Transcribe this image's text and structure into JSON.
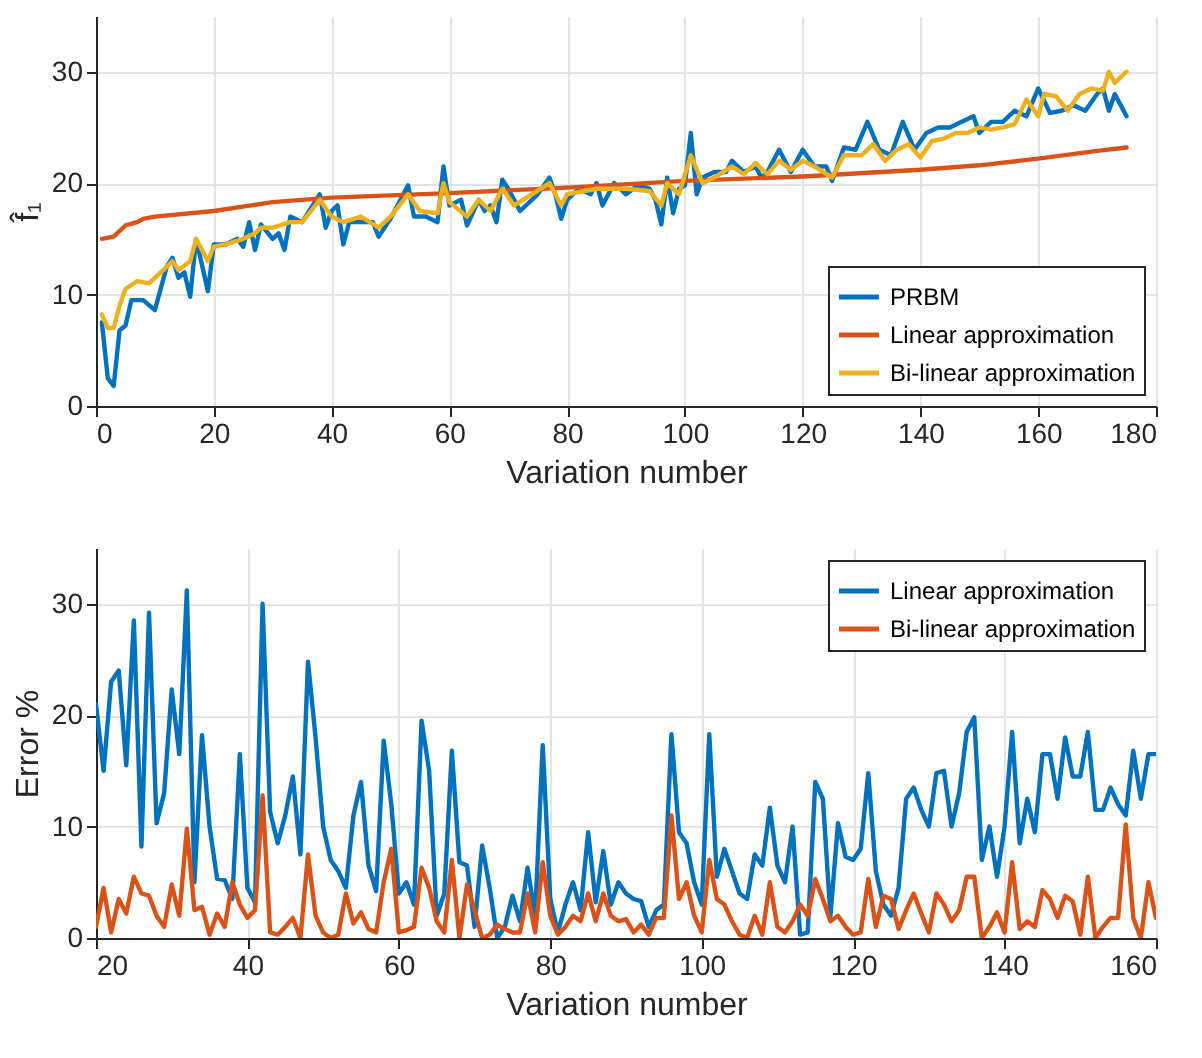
{
  "chart_data": [
    {
      "type": "line",
      "xlabel": "Variation number",
      "ylabel": "f̂₁",
      "xlim": [
        0,
        180
      ],
      "xticks": [
        0,
        20,
        40,
        60,
        80,
        100,
        120,
        140,
        160,
        180
      ],
      "ylim": [
        0,
        35
      ],
      "yticks": [
        0,
        10,
        20,
        30
      ],
      "grid": true,
      "legend": "bottom right",
      "series": [
        {
          "name": "PRBM",
          "color": "#0072bd",
          "x": [
            1,
            2,
            3,
            4,
            5,
            6,
            8,
            10,
            12,
            13,
            14,
            15,
            16,
            17,
            19,
            20,
            22,
            24,
            25,
            26,
            27,
            28,
            30,
            31,
            32,
            33,
            35,
            38,
            39,
            40,
            41,
            42,
            43,
            45,
            47,
            48,
            50,
            53,
            54,
            56,
            58,
            59,
            60,
            62,
            63,
            65,
            66,
            67,
            68,
            69,
            70,
            72,
            75,
            77,
            78,
            79,
            80,
            82,
            84,
            85,
            86,
            88,
            90,
            92,
            94,
            95,
            96,
            97,
            98,
            99,
            100,
            101,
            102,
            103,
            105,
            107,
            108,
            110,
            112,
            113,
            114,
            116,
            118,
            120,
            122,
            124,
            125,
            127,
            129,
            131,
            133,
            135,
            137,
            139,
            141,
            143,
            145,
            147,
            149,
            150,
            152,
            154,
            156,
            158,
            160,
            162,
            164,
            166,
            168,
            170,
            171,
            172,
            173,
            175
          ],
          "values": [
            7.5,
            2.5,
            1.8,
            6.8,
            7.2,
            9.5,
            9.5,
            8.6,
            12.5,
            13.3,
            11.5,
            12,
            9.8,
            15,
            10.3,
            14.5,
            14.5,
            15,
            14.3,
            16.5,
            14,
            16.3,
            15,
            15.5,
            14,
            17,
            16.5,
            19,
            16,
            17.5,
            18,
            14.5,
            16.5,
            16.5,
            16.5,
            15.2,
            16.8,
            19.8,
            17,
            17,
            16.5,
            21.5,
            18,
            18.5,
            16.2,
            18.5,
            17.5,
            18,
            16.5,
            20.3,
            19.5,
            17.5,
            19,
            20.5,
            19,
            16.8,
            18.5,
            19.5,
            19,
            20,
            18,
            20,
            19,
            19.8,
            19.5,
            18.5,
            16.3,
            20.5,
            17.3,
            19.5,
            19.8,
            24.5,
            19,
            20.5,
            21,
            21,
            22,
            21,
            21.5,
            20.5,
            21,
            23,
            21,
            23,
            21.5,
            21.5,
            20.2,
            23.2,
            23,
            25.5,
            23,
            22.5,
            25.5,
            23,
            24.5,
            25,
            25,
            25.5,
            26,
            24.5,
            25.5,
            25.5,
            26.5,
            26,
            28.5,
            26.3,
            26.5,
            27,
            26.5,
            28,
            28.5,
            26.5,
            28,
            26
          ]
        },
        {
          "name": "Linear approximation",
          "color": "#d95319",
          "x": [
            1,
            3,
            5,
            7,
            8,
            10,
            20,
            30,
            40,
            60,
            80,
            100,
            120,
            140,
            150,
            160,
            170,
            175
          ],
          "values": [
            15,
            15.2,
            16.2,
            16.5,
            16.8,
            17,
            17.5,
            18.3,
            18.7,
            19.1,
            19.6,
            20.2,
            20.6,
            21.2,
            21.6,
            22.2,
            22.9,
            23.2
          ]
        },
        {
          "name": "Bi-linear approximation",
          "color": "#edb120",
          "x": [
            1,
            2,
            3,
            4,
            5,
            7,
            9,
            11,
            13,
            14,
            16,
            17,
            19,
            20,
            22,
            25,
            27,
            28,
            30,
            33,
            35,
            38,
            40,
            42,
            45,
            48,
            50,
            53,
            55,
            58,
            59,
            60,
            63,
            65,
            67,
            69,
            71,
            74,
            77,
            79,
            80,
            85,
            90,
            94,
            96,
            97,
            99,
            101,
            103,
            105,
            108,
            110,
            112,
            114,
            116,
            118,
            120,
            122,
            125,
            127,
            130,
            132,
            134,
            136,
            138,
            140,
            142,
            144,
            146,
            148,
            150,
            152,
            154,
            156,
            158,
            160,
            161,
            163,
            165,
            167,
            169,
            171,
            172,
            173,
            175
          ],
          "values": [
            8.2,
            7,
            7,
            9,
            10.5,
            11.2,
            11,
            12,
            13,
            12.2,
            13,
            15,
            13,
            14.3,
            14.5,
            15,
            15.5,
            16,
            16,
            16.5,
            16.5,
            18.5,
            17,
            16.5,
            17,
            16,
            17,
            19,
            17.5,
            17.3,
            20,
            18.3,
            17,
            18.5,
            17.5,
            19.5,
            18,
            19,
            20,
            18,
            19,
            19.5,
            19.5,
            19.3,
            18,
            20,
            19,
            22.5,
            20,
            20.5,
            21.5,
            20.8,
            21.8,
            20.8,
            22,
            21.2,
            22,
            21.5,
            20.5,
            22.5,
            22.5,
            23.5,
            22,
            23,
            23.5,
            22.3,
            23.8,
            24,
            24.5,
            24.5,
            25,
            24.8,
            25,
            25.3,
            27.5,
            26,
            28,
            27.8,
            26.5,
            28,
            28.5,
            28.3,
            30,
            29,
            30
          ]
        }
      ]
    },
    {
      "type": "line",
      "xlabel": "Variation number",
      "ylabel": "Error %",
      "xlim": [
        20,
        160
      ],
      "xticks": [
        20,
        40,
        60,
        80,
        100,
        120,
        140,
        160
      ],
      "ylim": [
        0,
        35
      ],
      "yticks": [
        0,
        10,
        20,
        30
      ],
      "grid": true,
      "legend": "top right",
      "series": [
        {
          "name": "Linear approximation",
          "color": "#0072bd",
          "x": [
            20,
            21,
            22,
            23,
            24,
            25,
            26,
            27,
            28,
            29,
            30,
            31,
            32,
            33,
            34,
            35,
            36,
            37,
            38,
            39,
            40,
            41,
            42,
            43,
            44,
            45,
            46,
            47,
            48,
            49,
            50,
            51,
            52,
            53,
            54,
            55,
            56,
            57,
            58,
            59,
            60,
            61,
            62,
            63,
            64,
            65,
            66,
            67,
            68,
            69,
            70,
            71,
            72,
            73,
            74,
            75,
            76,
            77,
            78,
            79,
            80,
            81,
            82,
            83,
            84,
            85,
            86,
            87,
            88,
            89,
            90,
            91,
            92,
            93,
            94,
            95,
            96,
            97,
            98,
            99,
            100,
            101,
            102,
            103,
            104,
            105,
            106,
            107,
            108,
            109,
            110,
            111,
            112,
            113,
            114,
            115,
            116,
            117,
            118,
            119,
            120,
            121,
            122,
            123,
            124,
            125,
            126,
            127,
            128,
            129,
            130,
            131,
            132,
            133,
            134,
            135,
            136,
            137,
            138,
            139,
            140,
            141,
            142,
            143,
            144,
            145,
            146,
            147,
            148,
            149,
            150,
            151,
            152,
            153,
            154,
            155,
            156,
            157,
            158,
            159,
            160
          ],
          "values": [
            21,
            15,
            23,
            24,
            15.5,
            28.5,
            8.2,
            29.2,
            10.3,
            13,
            22.3,
            16.5,
            31.2,
            5,
            18.2,
            10,
            5.3,
            5.2,
            3.5,
            16.5,
            4.5,
            3.2,
            30,
            11.3,
            8.5,
            11,
            14.5,
            7.5,
            24.8,
            18,
            10,
            7,
            6,
            4.5,
            11,
            14,
            6.5,
            4.2,
            17.7,
            12,
            4,
            5,
            3,
            19.5,
            15,
            2,
            4,
            16.8,
            6.8,
            6.5,
            1,
            8.3,
            4.5,
            0,
            1,
            3.8,
            1.5,
            6.3,
            2,
            17.3,
            3.5,
            0.5,
            3,
            5,
            2.5,
            9.5,
            3.2,
            7.8,
            3,
            5,
            4,
            3.5,
            3.3,
            1,
            2.5,
            3,
            18.3,
            9.5,
            8.5,
            5,
            3,
            18.3,
            5.5,
            8,
            6,
            4,
            3.5,
            7.5,
            6.5,
            11.7,
            6.5,
            5,
            10,
            0.3,
            0.5,
            14,
            12.5,
            2,
            10.3,
            7.3,
            7,
            8,
            14.8,
            6,
            3,
            2,
            4.5,
            12.5,
            13.5,
            11.5,
            10,
            14.8,
            15,
            10,
            13,
            18.5,
            19.8,
            7,
            10,
            5.5,
            10,
            18.5,
            8.5,
            12.5,
            9.5,
            16.5,
            16.5,
            12.5,
            18,
            14.5,
            14.5,
            18.5,
            11.5,
            11.5,
            13.5,
            12,
            11,
            16.8,
            12.5,
            16.5,
            16.5
          ]
        },
        {
          "name": "Bi-linear approximation",
          "color": "#d95319",
          "x": [
            20,
            21,
            22,
            23,
            24,
            25,
            26,
            27,
            28,
            29,
            30,
            31,
            32,
            33,
            34,
            35,
            36,
            37,
            38,
            39,
            40,
            41,
            42,
            43,
            44,
            45,
            46,
            47,
            48,
            49,
            50,
            51,
            52,
            53,
            54,
            55,
            56,
            57,
            58,
            59,
            60,
            61,
            62,
            63,
            64,
            65,
            66,
            67,
            68,
            69,
            70,
            71,
            72,
            73,
            74,
            75,
            76,
            77,
            78,
            79,
            80,
            81,
            82,
            83,
            84,
            85,
            86,
            87,
            88,
            89,
            90,
            91,
            92,
            93,
            94,
            95,
            96,
            97,
            98,
            99,
            100,
            101,
            102,
            103,
            104,
            105,
            106,
            107,
            108,
            109,
            110,
            111,
            112,
            113,
            114,
            115,
            116,
            117,
            118,
            119,
            120,
            121,
            122,
            123,
            124,
            125,
            126,
            127,
            128,
            129,
            130,
            131,
            132,
            133,
            134,
            135,
            136,
            137,
            138,
            139,
            140,
            141,
            142,
            143,
            144,
            145,
            146,
            147,
            148,
            149,
            150,
            151,
            152,
            153,
            154,
            155,
            156,
            157,
            158,
            159,
            160
          ],
          "values": [
            1,
            4.5,
            0.5,
            3.5,
            2.2,
            5.5,
            4,
            3.8,
            2,
            1,
            4.8,
            2,
            9.8,
            2.5,
            2.8,
            0.3,
            2.2,
            1,
            5,
            3,
            1.8,
            2.5,
            12.8,
            0.5,
            0.3,
            1,
            1.8,
            0,
            7.5,
            2,
            0.5,
            0,
            0.3,
            4,
            1.3,
            2.3,
            0.8,
            0.5,
            5,
            8,
            0.5,
            0.7,
            1,
            6.3,
            4.5,
            1.5,
            0.5,
            7,
            0,
            4.8,
            2.5,
            0,
            0.3,
            1.2,
            0.8,
            0.5,
            0.5,
            4,
            0.5,
            6.8,
            2,
            0.3,
            1,
            2,
            1.5,
            4,
            1.5,
            4,
            2,
            1.5,
            1.7,
            0.5,
            1.2,
            0.3,
            1.8,
            1.8,
            11,
            3.5,
            5,
            2,
            0.5,
            7,
            3.5,
            3,
            1.5,
            0.3,
            0,
            2,
            0.3,
            5,
            1,
            0.5,
            1.5,
            3,
            2,
            5.3,
            3.5,
            1.5,
            2,
            1,
            0.3,
            0.5,
            5.3,
            1,
            3.8,
            3.5,
            0.8,
            2.5,
            4,
            2.2,
            0.5,
            4,
            3,
            1.5,
            2.5,
            5.5,
            5.5,
            0,
            1,
            2.3,
            0.5,
            6.8,
            0.8,
            1.5,
            1,
            4.3,
            3.5,
            1.8,
            3.8,
            3.3,
            0.3,
            5.5,
            0,
            1,
            1.8,
            1.8,
            10.2,
            1.8,
            0,
            5,
            1.8
          ]
        }
      ]
    }
  ]
}
